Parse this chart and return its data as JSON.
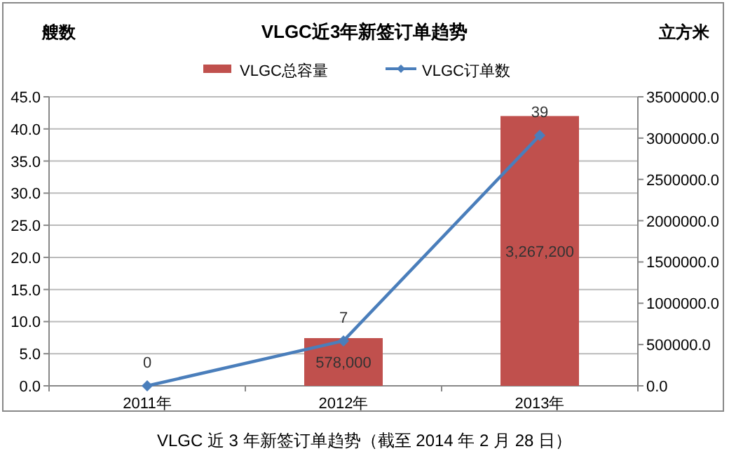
{
  "chart_data": {
    "type": "bar",
    "title": "VLGC近3年新签订单趋势",
    "ylabel": "艘数",
    "y2label": "立方米",
    "categories": [
      "2011年",
      "2012年",
      "2013年"
    ],
    "series": [
      {
        "name": "VLGC总容量",
        "axis": "y2",
        "color": "#c0504d",
        "values": [
          null,
          578000,
          3267200
        ],
        "value_labels": [
          null,
          "578,000",
          "3,267,200"
        ]
      },
      {
        "name": "VLGC订单数",
        "type": "line",
        "axis": "y",
        "color": "#4a7ebb",
        "marker": "diamond",
        "values": [
          0,
          7,
          39
        ],
        "value_labels": [
          "0",
          "7",
          "39"
        ]
      }
    ],
    "ylim": [
      0,
      45
    ],
    "yticks": [
      {
        "value": 0,
        "label": "0.0"
      },
      {
        "value": 5,
        "label": "5.0"
      },
      {
        "value": 10,
        "label": "10.0"
      },
      {
        "value": 15,
        "label": "15.0"
      },
      {
        "value": 20,
        "label": "20.0"
      },
      {
        "value": 25,
        "label": "25.0"
      },
      {
        "value": 30,
        "label": "30.0"
      },
      {
        "value": 35,
        "label": "35.0"
      },
      {
        "value": 40,
        "label": "40.0"
      },
      {
        "value": 45,
        "label": "45.0"
      }
    ],
    "y2lim": [
      0,
      3500000
    ],
    "y2ticks": [
      {
        "value": 0,
        "label": "0.0"
      },
      {
        "value": 500000,
        "label": "500000.0"
      },
      {
        "value": 1000000,
        "label": "1000000.0"
      },
      {
        "value": 1500000,
        "label": "1500000.0"
      },
      {
        "value": 2000000,
        "label": "2000000.0"
      },
      {
        "value": 2500000,
        "label": "2500000.0"
      },
      {
        "value": 3000000,
        "label": "3000000.0"
      },
      {
        "value": 3500000,
        "label": "3500000.0"
      }
    ],
    "grid": "y",
    "legend": "top",
    "annotations": [
      "VLGC 近 3 年新签订单趋势（截至 2014 年 2 月 28 日）"
    ]
  }
}
